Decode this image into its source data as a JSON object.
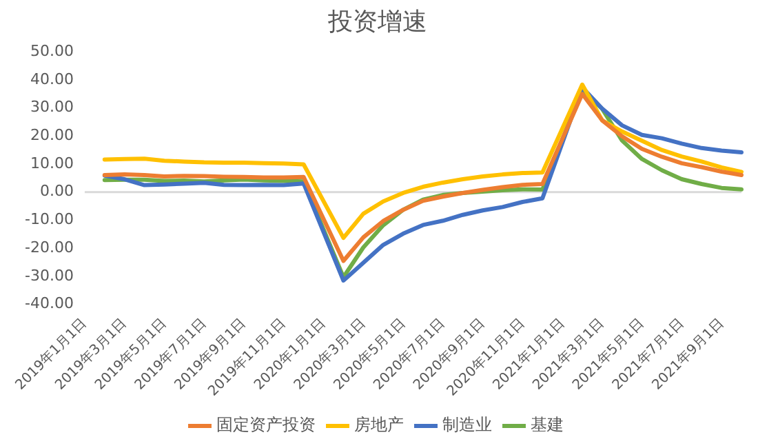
{
  "chart_data": {
    "type": "line",
    "title": "投资增速",
    "categories": [
      "2019年1月1日",
      null,
      "2019年3月1日",
      null,
      "2019年5月1日",
      null,
      "2019年7月1日",
      null,
      "2019年9月1日",
      null,
      "2019年11月1日",
      null,
      "2020年1月1日",
      null,
      "2020年3月1日",
      null,
      "2020年5月1日",
      null,
      "2020年7月1日",
      null,
      "2020年9月1日",
      null,
      "2020年11月1日",
      null,
      "2021年1月1日",
      null,
      "2021年3月1日",
      null,
      "2021年5月1日",
      null,
      "2021年7月1日",
      null,
      "2021年9月1日",
      null
    ],
    "series": [
      {
        "name": "固定资产投资",
        "color": "#ed7d31",
        "values": [
          null,
          6.1,
          6.3,
          6.1,
          5.6,
          5.8,
          5.7,
          5.5,
          5.4,
          5.2,
          5.2,
          5.4,
          null,
          -24.5,
          -16.1,
          -10.3,
          -6.3,
          -3.1,
          -1.6,
          -0.3,
          0.8,
          1.8,
          2.6,
          2.9,
          null,
          35.0,
          25.6,
          19.9,
          15.4,
          12.6,
          10.3,
          8.9,
          7.3,
          6.1
        ]
      },
      {
        "name": "房地产",
        "color": "#ffc000",
        "values": [
          null,
          11.6,
          11.8,
          11.9,
          11.2,
          10.9,
          10.6,
          10.5,
          10.5,
          10.3,
          10.2,
          9.9,
          null,
          -16.3,
          -7.7,
          -3.3,
          -0.3,
          1.9,
          3.4,
          4.6,
          5.6,
          6.3,
          6.8,
          7.0,
          null,
          38.3,
          25.6,
          21.6,
          18.3,
          15.0,
          12.7,
          10.9,
          8.8,
          7.2
        ]
      },
      {
        "name": "制造业",
        "color": "#4472c4",
        "values": [
          null,
          5.9,
          4.6,
          2.5,
          2.7,
          3.0,
          3.3,
          2.6,
          2.5,
          2.6,
          2.5,
          3.1,
          null,
          -31.5,
          -25.2,
          -18.8,
          -14.8,
          -11.7,
          -10.2,
          -8.1,
          -6.5,
          -5.3,
          -3.5,
          -2.2,
          null,
          37.3,
          29.8,
          23.8,
          20.4,
          19.2,
          17.3,
          15.7,
          14.8,
          14.2
        ]
      },
      {
        "name": "基建",
        "color": "#70ad47",
        "values": [
          null,
          4.3,
          4.4,
          4.4,
          4.0,
          4.1,
          3.8,
          4.2,
          4.5,
          4.2,
          4.0,
          3.8,
          null,
          -30.3,
          -19.7,
          -11.8,
          -6.3,
          -2.7,
          -1.0,
          -0.3,
          0.2,
          0.7,
          1.0,
          0.9,
          null,
          36.6,
          29.7,
          18.4,
          11.8,
          7.8,
          4.6,
          2.9,
          1.5,
          1.0
        ]
      }
    ],
    "ylim": [
      -40,
      50
    ],
    "yticks": [
      {
        "value": -40,
        "label": "-40.00"
      },
      {
        "value": -30,
        "label": "-30.00"
      },
      {
        "value": -20,
        "label": "-20.00"
      },
      {
        "value": -10,
        "label": "-10.00"
      },
      {
        "value": 0,
        "label": "0.00"
      },
      {
        "value": 10,
        "label": "10.00"
      },
      {
        "value": 20,
        "label": "20.00"
      },
      {
        "value": 30,
        "label": "30.00"
      },
      {
        "value": 40,
        "label": "40.00"
      },
      {
        "value": 50,
        "label": "50.00"
      }
    ],
    "ref_lines": [
      {
        "axis": "y",
        "value": 0,
        "color": "#d9d9d9"
      }
    ],
    "grid": false,
    "legend": "bottom",
    "marker": "none",
    "line_style": "solid"
  }
}
